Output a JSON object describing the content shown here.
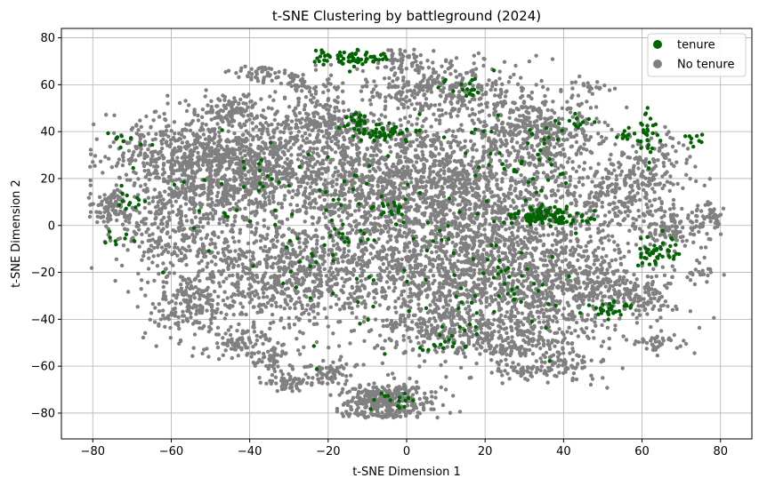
{
  "chart_data": {
    "type": "scatter",
    "title": "t-SNE Clustering by battleground (2024)",
    "xlabel": "t-SNE Dimension 1",
    "ylabel": "t-SNE Dimension 2",
    "xlim": [
      -88,
      88
    ],
    "ylim": [
      -91,
      84
    ],
    "xticks": [
      -80,
      -60,
      -40,
      -20,
      0,
      20,
      40,
      60,
      80
    ],
    "yticks": [
      -80,
      -60,
      -40,
      -20,
      0,
      20,
      40,
      60,
      80
    ],
    "grid": true,
    "legend_position": "top-right",
    "series": [
      {
        "name": "tenure",
        "color": "#006400",
        "clusters": [
          {
            "x": -14,
            "y": 71,
            "sx": 3,
            "sy": 2,
            "n": 40
          },
          {
            "x": -21,
            "y": 72,
            "sx": 2,
            "sy": 1.5,
            "n": 15
          },
          {
            "x": -7,
            "y": 72,
            "sx": 1.5,
            "sy": 1,
            "n": 8
          },
          {
            "x": -12,
            "y": 44,
            "sx": 2,
            "sy": 2,
            "n": 20
          },
          {
            "x": -4,
            "y": 40,
            "sx": 4,
            "sy": 2,
            "n": 35
          },
          {
            "x": -10,
            "y": 40,
            "sx": 2,
            "sy": 2,
            "n": 12
          },
          {
            "x": 15,
            "y": 59,
            "sx": 3,
            "sy": 2,
            "n": 15
          },
          {
            "x": 34,
            "y": 4,
            "sx": 4,
            "sy": 2,
            "n": 80
          },
          {
            "x": 42,
            "y": 3,
            "sx": 3,
            "sy": 2,
            "n": 25
          },
          {
            "x": 65,
            "y": -10,
            "sx": 3,
            "sy": 3,
            "n": 45
          },
          {
            "x": 52,
            "y": -36,
            "sx": 3,
            "sy": 1.5,
            "n": 30
          },
          {
            "x": 62,
            "y": 38,
            "sx": 1.5,
            "sy": 5,
            "n": 30
          },
          {
            "x": 57,
            "y": 38,
            "sx": 2,
            "sy": 1.5,
            "n": 10
          },
          {
            "x": 75,
            "y": 36,
            "sx": 1,
            "sy": 1,
            "n": 5
          },
          {
            "x": 72,
            "y": 38,
            "sx": 1,
            "sy": 1,
            "n": 4
          },
          {
            "x": -71,
            "y": 10,
            "sx": 1.5,
            "sy": 1.5,
            "n": 12
          },
          {
            "x": -72,
            "y": 36,
            "sx": 2,
            "sy": 2,
            "n": 10
          },
          {
            "x": -73,
            "y": -5,
            "sx": 2,
            "sy": 3,
            "n": 8
          },
          {
            "x": -5,
            "y": -74,
            "sx": 3,
            "sy": 2,
            "n": 15
          },
          {
            "x": 10,
            "y": -50,
            "sx": 3,
            "sy": 3,
            "n": 15
          },
          {
            "x": 25,
            "y": -30,
            "sx": 10,
            "sy": 10,
            "n": 40
          },
          {
            "x": 30,
            "y": 30,
            "sx": 8,
            "sy": 10,
            "n": 40
          },
          {
            "x": 0,
            "y": 0,
            "sx": 20,
            "sy": 20,
            "n": 80
          },
          {
            "x": -30,
            "y": 0,
            "sx": 15,
            "sy": 20,
            "n": 40
          },
          {
            "x": -50,
            "y": 20,
            "sx": 10,
            "sy": 10,
            "n": 15
          },
          {
            "x": -3,
            "y": 7,
            "sx": 2,
            "sy": 1.5,
            "n": 15
          },
          {
            "x": 40,
            "y": 44,
            "sx": 4,
            "sy": 3,
            "n": 12
          },
          {
            "x": -15,
            "y": -5,
            "sx": 3,
            "sy": 2,
            "n": 10
          }
        ]
      },
      {
        "name": "No tenure",
        "color": "#808080",
        "clusters": [
          {
            "x": -45,
            "y": 25,
            "sx": 12,
            "sy": 12,
            "n": 1100
          },
          {
            "x": -10,
            "y": 20,
            "sx": 15,
            "sy": 15,
            "n": 1000
          },
          {
            "x": 20,
            "y": 15,
            "sx": 15,
            "sy": 18,
            "n": 1100
          },
          {
            "x": 10,
            "y": -20,
            "sx": 15,
            "sy": 15,
            "n": 1000
          },
          {
            "x": -30,
            "y": -20,
            "sx": 12,
            "sy": 12,
            "n": 700
          },
          {
            "x": 40,
            "y": -25,
            "sx": 12,
            "sy": 12,
            "n": 650
          },
          {
            "x": -60,
            "y": 0,
            "sx": 8,
            "sy": 12,
            "n": 300
          },
          {
            "x": -75,
            "y": 8,
            "sx": 3,
            "sy": 4,
            "n": 100
          },
          {
            "x": -55,
            "y": -35,
            "sx": 6,
            "sy": 8,
            "n": 200
          },
          {
            "x": -45,
            "y": 50,
            "sx": 4,
            "sy": 3,
            "n": 90
          },
          {
            "x": -38,
            "y": 65,
            "sx": 3,
            "sy": 2,
            "n": 40
          },
          {
            "x": -25,
            "y": 60,
            "sx": 4,
            "sy": 4,
            "n": 60
          },
          {
            "x": 10,
            "y": 58,
            "sx": 10,
            "sy": 6,
            "n": 300
          },
          {
            "x": 35,
            "y": 40,
            "sx": 8,
            "sy": 8,
            "n": 300
          },
          {
            "x": 55,
            "y": 15,
            "sx": 8,
            "sy": 10,
            "n": 300
          },
          {
            "x": 70,
            "y": 0,
            "sx": 5,
            "sy": 5,
            "n": 100
          },
          {
            "x": 60,
            "y": -30,
            "sx": 5,
            "sy": 5,
            "n": 100
          },
          {
            "x": 65,
            "y": -50,
            "sx": 3,
            "sy": 2,
            "n": 40
          },
          {
            "x": 75,
            "y": -20,
            "sx": 2,
            "sy": 2,
            "n": 20
          },
          {
            "x": -5,
            "y": -75,
            "sx": 6,
            "sy": 4,
            "n": 350
          },
          {
            "x": -20,
            "y": -62,
            "sx": 4,
            "sy": 3,
            "n": 80
          },
          {
            "x": -30,
            "y": -67,
            "sx": 3,
            "sy": 2,
            "n": 50
          },
          {
            "x": -35,
            "y": -58,
            "sx": 3,
            "sy": 2,
            "n": 40
          },
          {
            "x": 10,
            "y": -45,
            "sx": 8,
            "sy": 6,
            "n": 200
          },
          {
            "x": 30,
            "y": -50,
            "sx": 8,
            "sy": 6,
            "n": 200
          },
          {
            "x": 40,
            "y": -60,
            "sx": 5,
            "sy": 3,
            "n": 60
          },
          {
            "x": 30,
            "y": -62,
            "sx": 3,
            "sy": 2,
            "n": 30
          },
          {
            "x": -65,
            "y": 30,
            "sx": 6,
            "sy": 6,
            "n": 100
          },
          {
            "x": -20,
            "y": 45,
            "sx": 6,
            "sy": 6,
            "n": 150
          },
          {
            "x": 48,
            "y": 60,
            "sx": 3,
            "sy": 2,
            "n": 20
          },
          {
            "x": 65,
            "y": 30,
            "sx": 3,
            "sy": 5,
            "n": 50
          },
          {
            "x": 78,
            "y": 5,
            "sx": 2,
            "sy": 3,
            "n": 30
          },
          {
            "x": -40,
            "y": -50,
            "sx": 5,
            "sy": 4,
            "n": 80
          },
          {
            "x": 0,
            "y": 70,
            "sx": 4,
            "sy": 3,
            "n": 60
          }
        ]
      }
    ]
  }
}
